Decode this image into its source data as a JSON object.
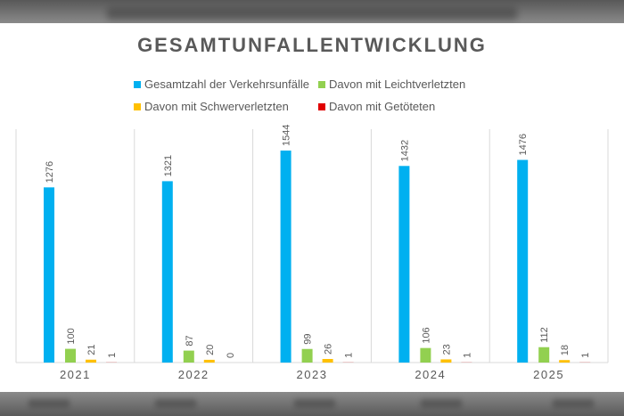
{
  "chart_data": {
    "type": "bar",
    "title": "GESAMTUNFALLENTWICKLUNG",
    "categories": [
      "2021",
      "2022",
      "2023",
      "2024",
      "2025"
    ],
    "series": [
      {
        "name": "Gesamtzahl der Verkehrsunfälle",
        "color": "#00B0F0",
        "values": [
          1276,
          1321,
          1544,
          1432,
          1476
        ]
      },
      {
        "name": "Davon mit Leichtverletzten",
        "color": "#92D050",
        "values": [
          100,
          87,
          99,
          106,
          112
        ]
      },
      {
        "name": "Davon mit Schwerverletzten",
        "color": "#FFC000",
        "values": [
          21,
          20,
          26,
          23,
          18
        ]
      },
      {
        "name": "Davon mit Getöteten",
        "color": "#E00000",
        "values": [
          1,
          0,
          1,
          1,
          1
        ]
      }
    ],
    "ylim": [
      0,
      1700
    ],
    "grid": false,
    "legend_position": "top",
    "category_separators": true
  }
}
